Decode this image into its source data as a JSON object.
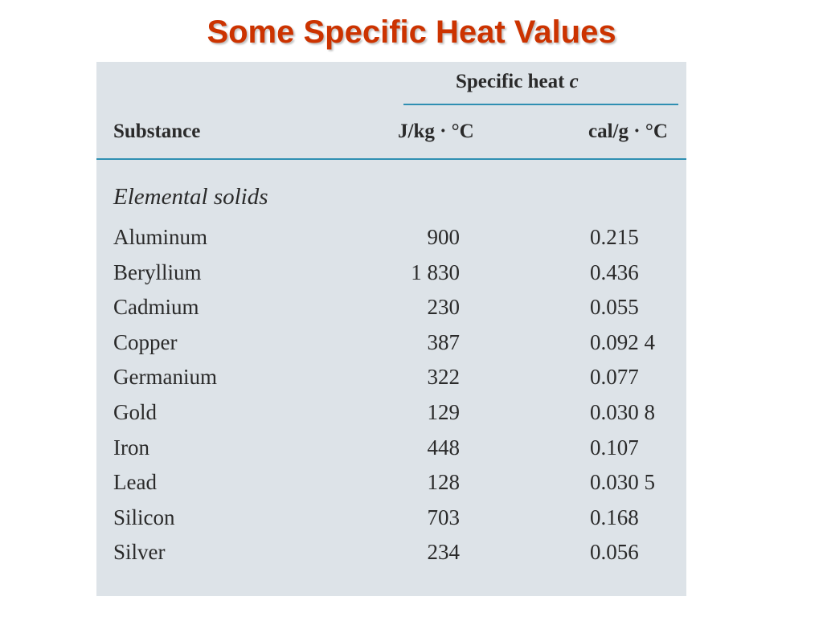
{
  "title": "Some Specific Heat Values",
  "table": {
    "group_header_text": "Specific heat ",
    "group_header_var": "c",
    "col_substance": "Substance",
    "col_jkg": "J/kg · °C",
    "col_calg": "cal/g · °C",
    "section": "Elemental solids",
    "rows": [
      {
        "name": "Aluminum",
        "jkg": "900",
        "calg": "0.215"
      },
      {
        "name": "Beryllium",
        "jkg": "1 830",
        "calg": "0.436"
      },
      {
        "name": "Cadmium",
        "jkg": "230",
        "calg": "0.055"
      },
      {
        "name": "Copper",
        "jkg": "387",
        "calg": "0.092 4"
      },
      {
        "name": "Germanium",
        "jkg": "322",
        "calg": "0.077"
      },
      {
        "name": "Gold",
        "jkg": "129",
        "calg": "0.030 8"
      },
      {
        "name": "Iron",
        "jkg": "448",
        "calg": "0.107"
      },
      {
        "name": "Lead",
        "jkg": "128",
        "calg": "0.030 5"
      },
      {
        "name": "Silicon",
        "jkg": "703",
        "calg": "0.168"
      },
      {
        "name": "Silver",
        "jkg": "234",
        "calg": "0.056"
      }
    ]
  }
}
